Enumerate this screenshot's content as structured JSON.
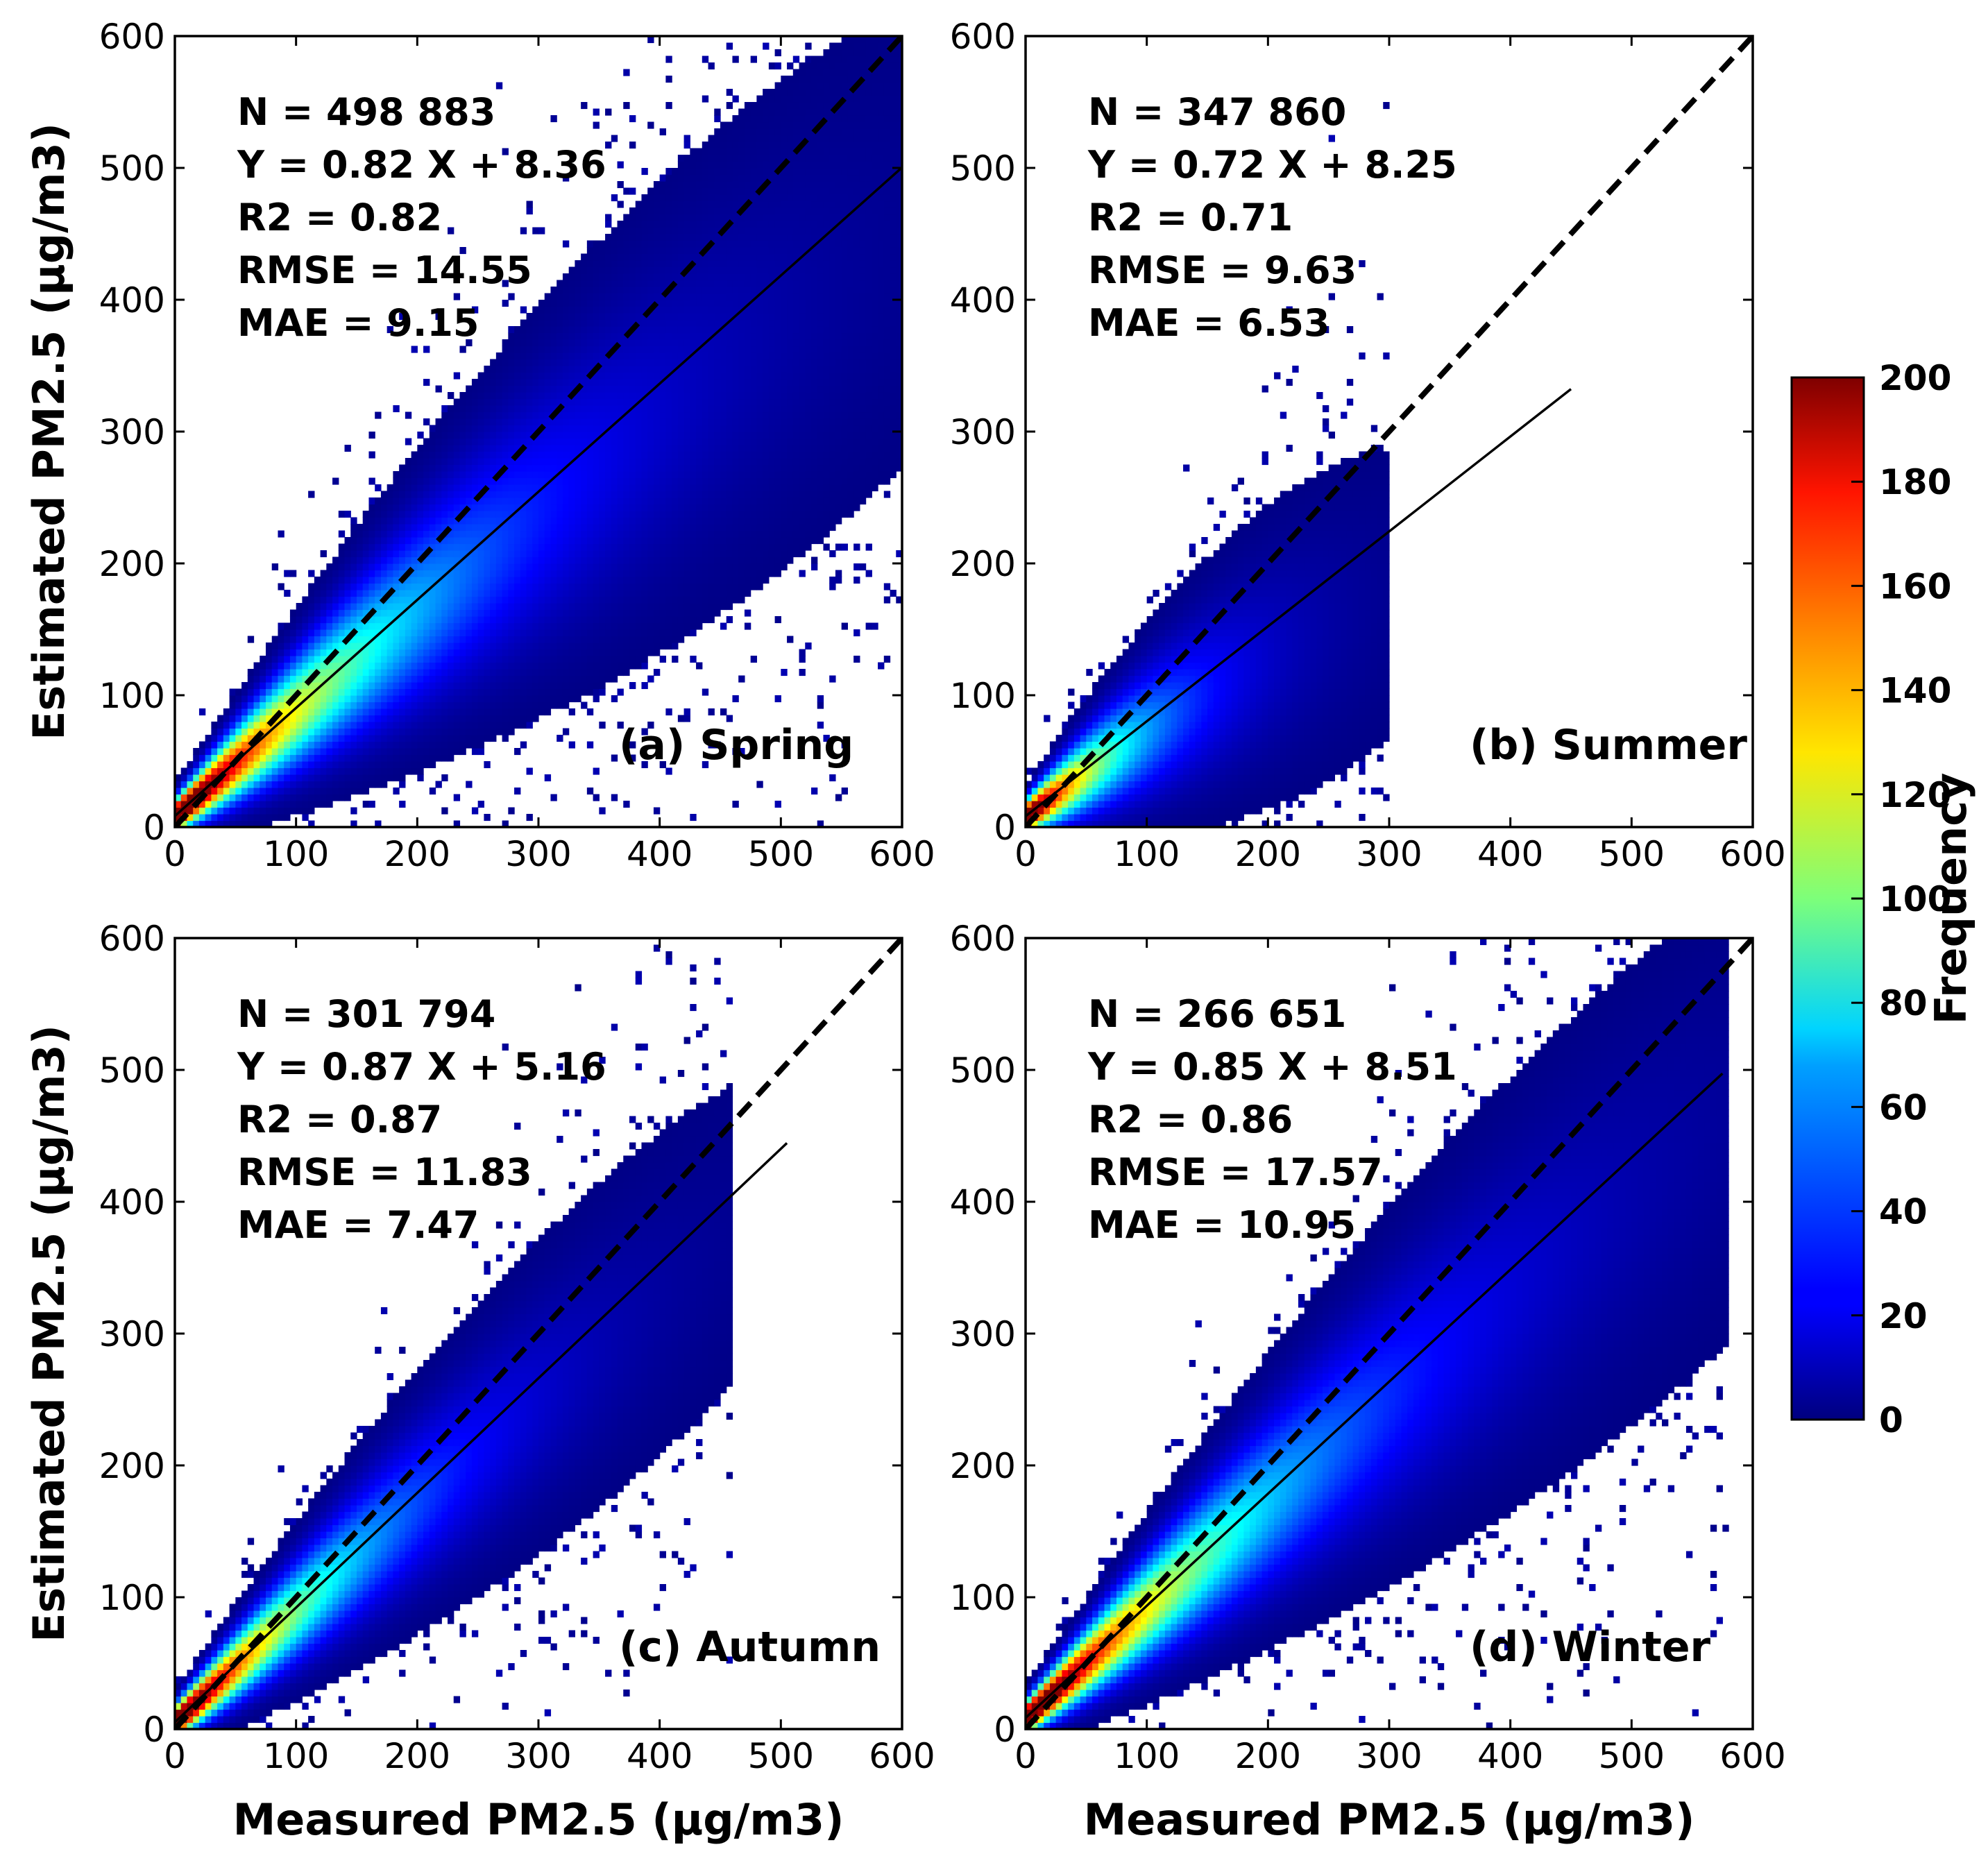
{
  "chart_data": {
    "type": "heatmap",
    "xlabel": "Measured PM2.5 (μg/m3)",
    "ylabel": "Estimated PM2.5 (μg/m3)",
    "xlim": [
      0,
      600
    ],
    "ylim": [
      0,
      600
    ],
    "ticks": [
      "0",
      "100",
      "200",
      "300",
      "400",
      "500",
      "600"
    ],
    "colorbar": {
      "label": "Frequency",
      "range": [
        0,
        200
      ],
      "ticks": [
        "0",
        "20",
        "40",
        "60",
        "80",
        "100",
        "120",
        "140",
        "160",
        "180",
        "200"
      ],
      "colormap": "jet"
    },
    "one_to_one_line": "dashed",
    "panels": [
      {
        "label": "(a) Spring",
        "stats": [
          "N = 498 883",
          "Y = 0.82 X + 8.36",
          "R2 = 0.82",
          "RMSE = 14.55",
          "MAE = 9.15"
        ],
        "fit": {
          "slope": 0.82,
          "intercept": 8.36,
          "x_end": 600
        },
        "density": {
          "spread": 0.18,
          "extent": 600,
          "peak_end": 140
        }
      },
      {
        "label": "(b) Summer",
        "stats": [
          "N = 347 860",
          "Y = 0.72 X + 8.25",
          "R2 = 0.71",
          "RMSE = 9.63",
          "MAE = 6.53"
        ],
        "fit": {
          "slope": 0.72,
          "intercept": 8.25,
          "x_end": 450
        },
        "density": {
          "spread": 0.22,
          "extent": 300,
          "peak_end": 65
        }
      },
      {
        "label": "(c) Autumn",
        "stats": [
          "N = 301 794",
          "Y = 0.87 X + 5.16",
          "R2 = 0.87",
          "RMSE = 11.83",
          "MAE = 7.47"
        ],
        "fit": {
          "slope": 0.87,
          "intercept": 5.16,
          "x_end": 505
        },
        "density": {
          "spread": 0.15,
          "extent": 460,
          "peak_end": 110
        }
      },
      {
        "label": "(d) Winter",
        "stats": [
          "N = 266 651",
          "Y = 0.85 X + 8.51",
          "R2 = 0.86",
          "RMSE = 17.57",
          "MAE = 10.95"
        ],
        "fit": {
          "slope": 0.85,
          "intercept": 8.51,
          "x_end": 575
        },
        "density": {
          "spread": 0.16,
          "extent": 580,
          "peak_end": 150
        }
      }
    ]
  }
}
